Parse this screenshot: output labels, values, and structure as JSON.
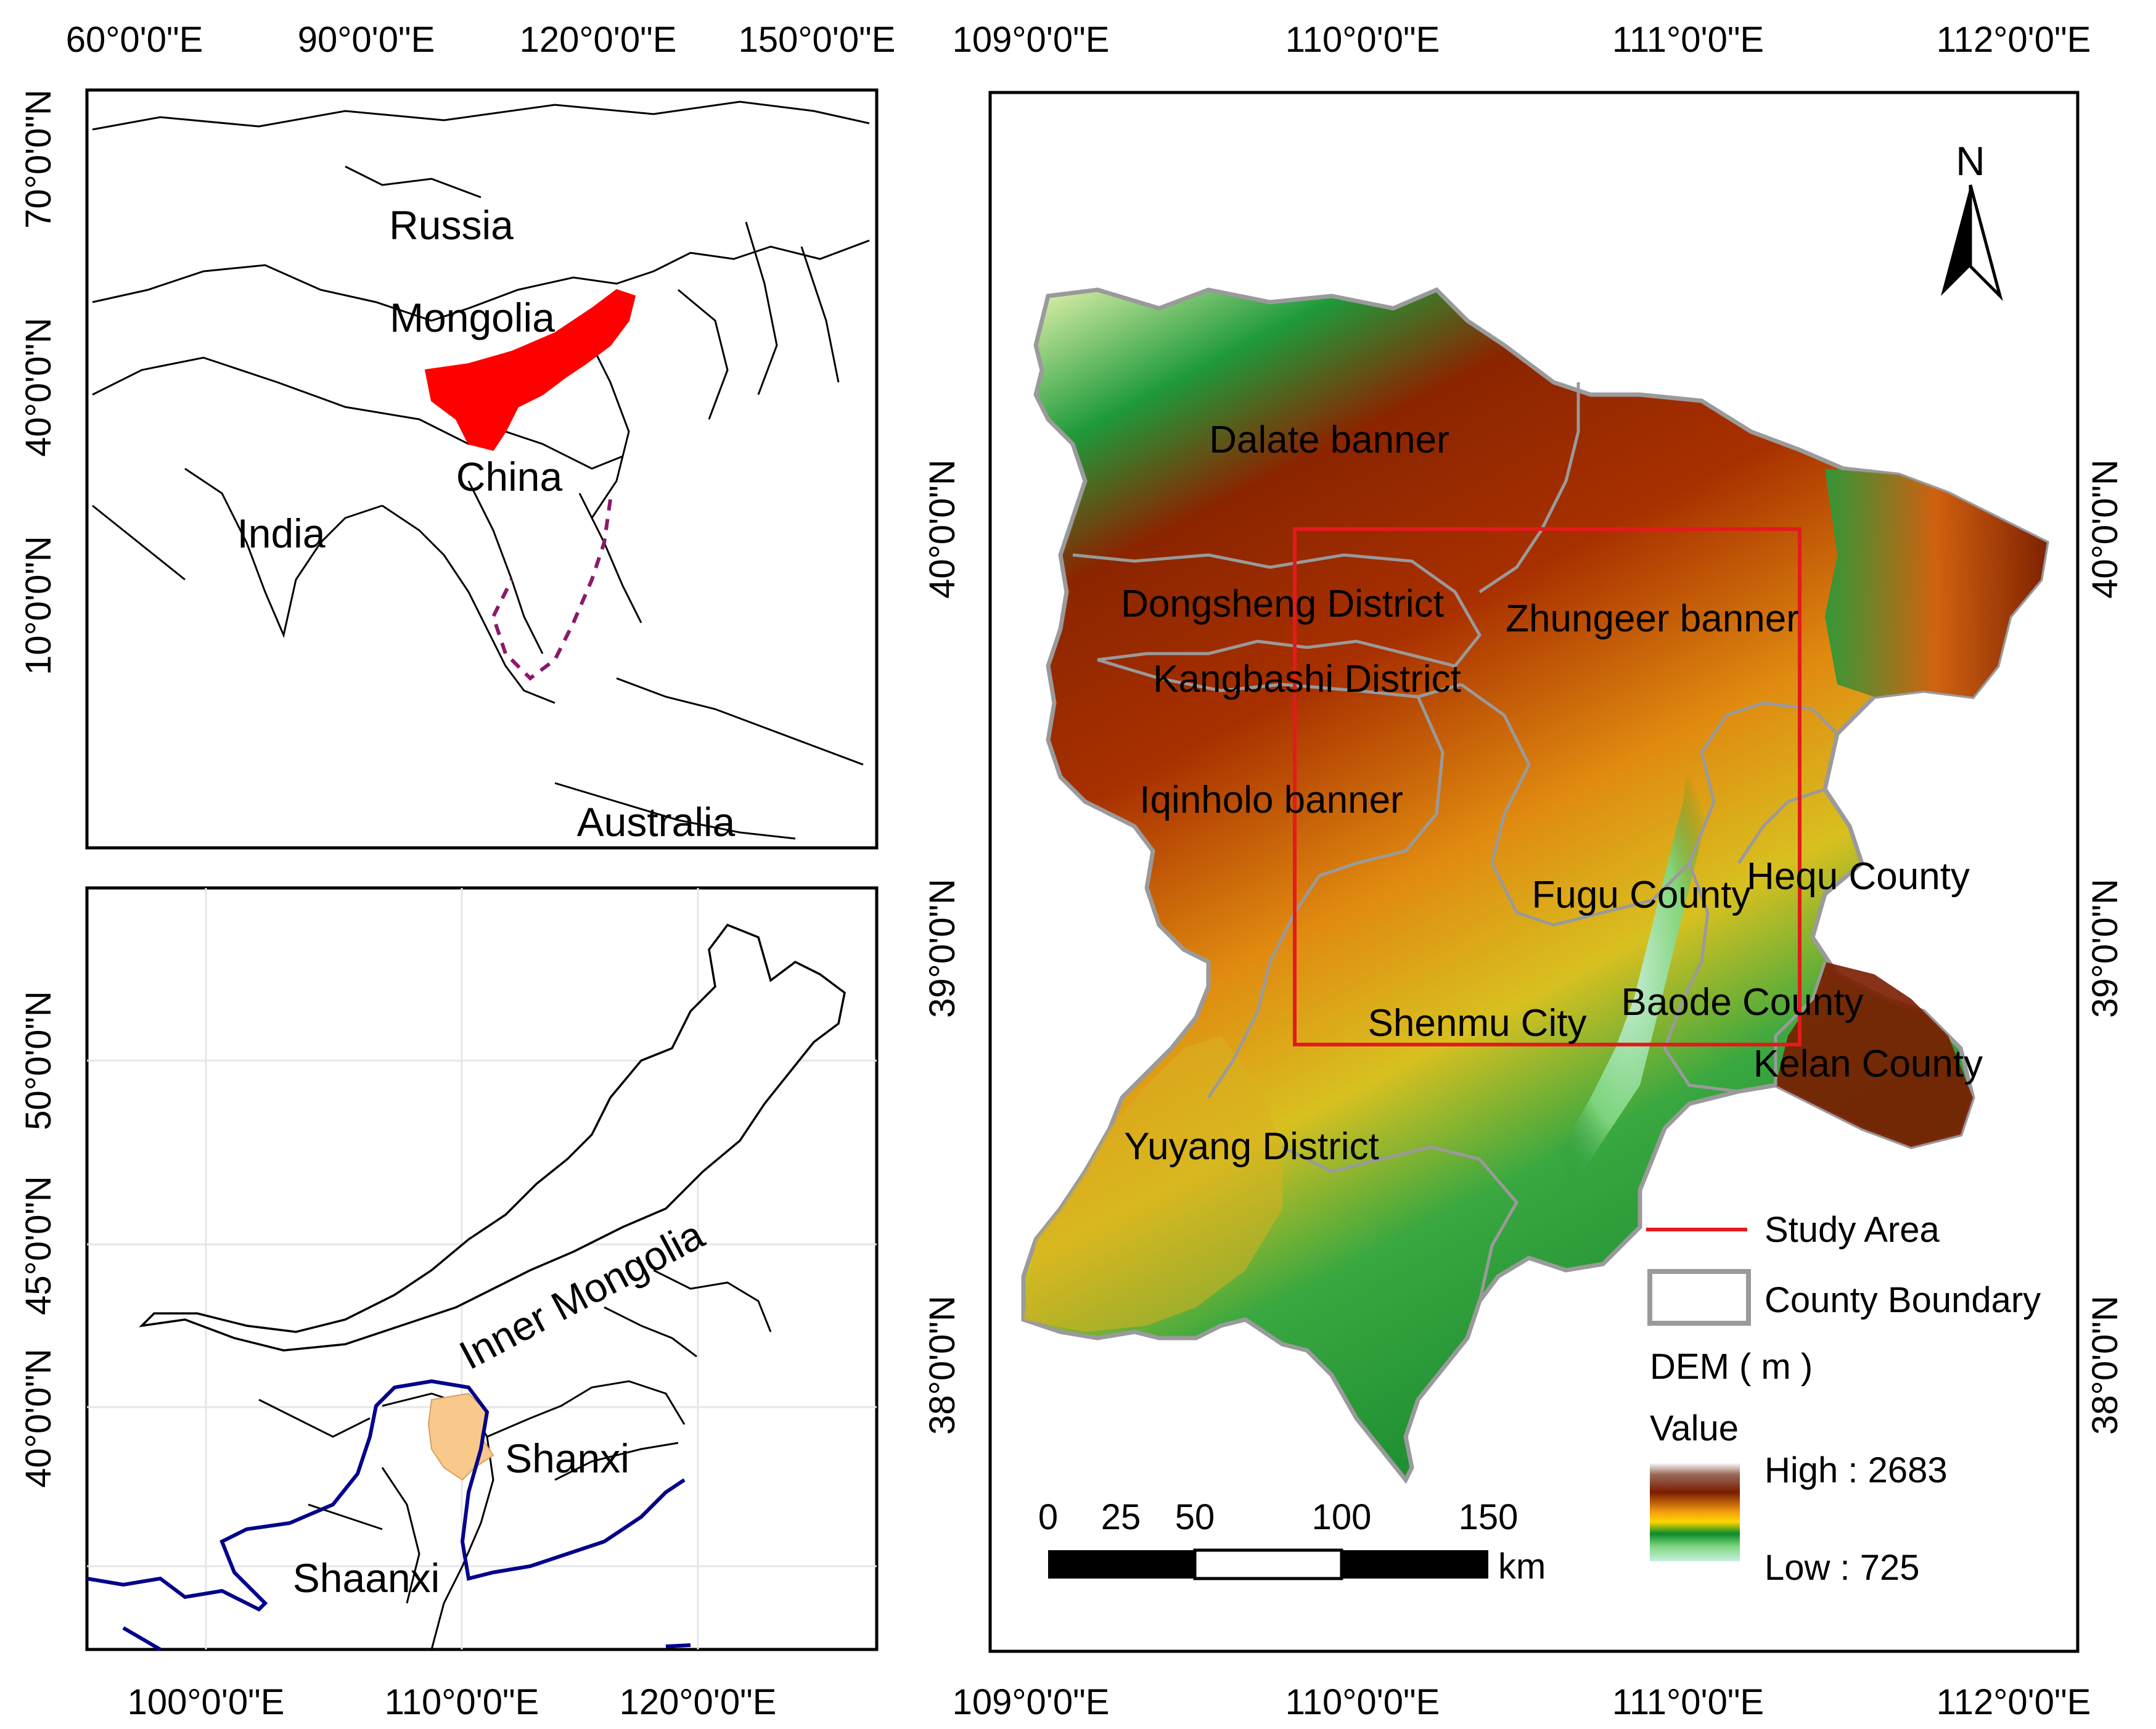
{
  "inset_asia": {
    "lon_ticks": [
      "60°0'0\"E",
      "90°0'0\"E",
      "120°0'0\"E",
      "150°0'0\"E"
    ],
    "lat_ticks": [
      "70°0'0\"N",
      "40°0'0\"N",
      "40°0'0\"N",
      "10°0'0\"N"
    ],
    "labels": {
      "russia": "Russia",
      "mongolia": "Mongolia",
      "china": "China",
      "india": "India",
      "australia": "Australia"
    },
    "highlight_color": "#ff0000"
  },
  "inset_china": {
    "lon_ticks": [
      "100°0'0\"E",
      "110°0'0\"E",
      "120°0'0\"E"
    ],
    "lat_ticks": [
      "50°0'0\"N",
      "45°0'0\"N",
      "40°0'0\"N"
    ],
    "labels": {
      "inner_mongolia": "Inner Mongolia",
      "shanxi": "Shanxi",
      "shaanxi": "Shaanxi"
    },
    "highlight_color": "#f8c98a",
    "river_color": "#00008b"
  },
  "main_map": {
    "lon_ticks_top": [
      "109°0'0\"E",
      "110°0'0\"E",
      "111°0'0\"E",
      "112°0'0\"E"
    ],
    "lon_ticks_bottom": [
      "109°0'0\"E",
      "110°0'0\"E",
      "111°0'0\"E",
      "112°0'0\"E"
    ],
    "lat_ticks_left": [
      "40°0'0\"N",
      "39°0'0\"N",
      "38°0'0\"N"
    ],
    "lat_ticks_right": [
      "40°0'0\"N",
      "39°0'0\"N",
      "38°0'0\"N"
    ],
    "north_label": "N",
    "districts": {
      "dalate": "Dalate banner",
      "dongsheng": "Dongsheng District",
      "zhungeer": "Zhungeer banner",
      "kangbashi": "Kangbashi District",
      "iqinholo": "Iqinholo banner",
      "fugu": "Fugu County",
      "hequ": "Hequ County",
      "baode": "Baode County",
      "shenmu": "Shenmu City",
      "kelan": "Kelan County",
      "yuyang": "Yuyang District"
    },
    "scale_bar": {
      "ticks": [
        "0",
        "25",
        "50",
        "100",
        "150"
      ],
      "unit": "km"
    },
    "legend": {
      "study_area": "Study Area",
      "county_boundary": "County Boundary",
      "dem_title": "DEM ( m )",
      "value_label": "Value",
      "high": "High : 2683",
      "low": "Low : 725"
    },
    "colors": {
      "study_area": "#e41a1c",
      "boundary": "#8a8a8a",
      "dem_high": "#7a1c00",
      "dem_mid": "#ffd700",
      "dem_green": "#0a8a2a",
      "dem_low": "#c8f0e0"
    }
  }
}
